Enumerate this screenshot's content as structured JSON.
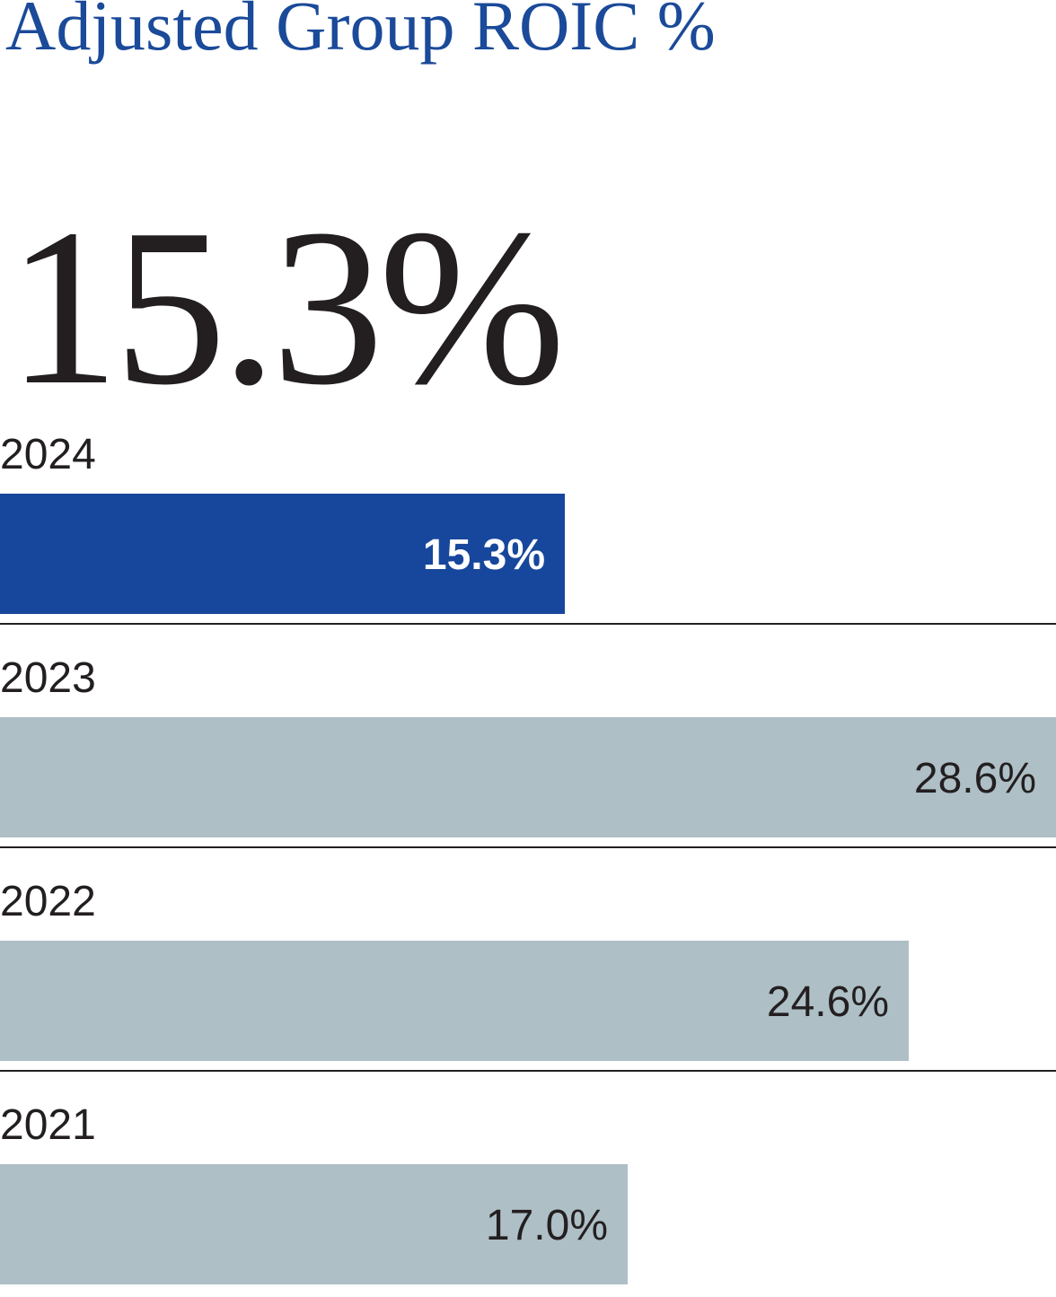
{
  "headline": {
    "title": "Adjusted Group ROIC %",
    "value": "15.3%"
  },
  "colors": {
    "title": "#1a4a99",
    "highlight_bar": "#17479c",
    "bar": "#aebfc6",
    "text": "#231f20",
    "highlight_text": "#ffffff",
    "divider": "#231f20"
  },
  "chart_data": {
    "type": "bar",
    "orientation": "horizontal",
    "title": "Adjusted Group ROIC %",
    "unit": "%",
    "categories": [
      "2024",
      "2023",
      "2022",
      "2021"
    ],
    "values": [
      15.3,
      28.6,
      24.6,
      17.0
    ],
    "value_labels": [
      "15.3%",
      "28.6%",
      "24.6%",
      "17.0%"
    ],
    "highlight": "2024",
    "xlim": [
      0,
      28.6
    ],
    "grid": false,
    "legend": "none"
  }
}
